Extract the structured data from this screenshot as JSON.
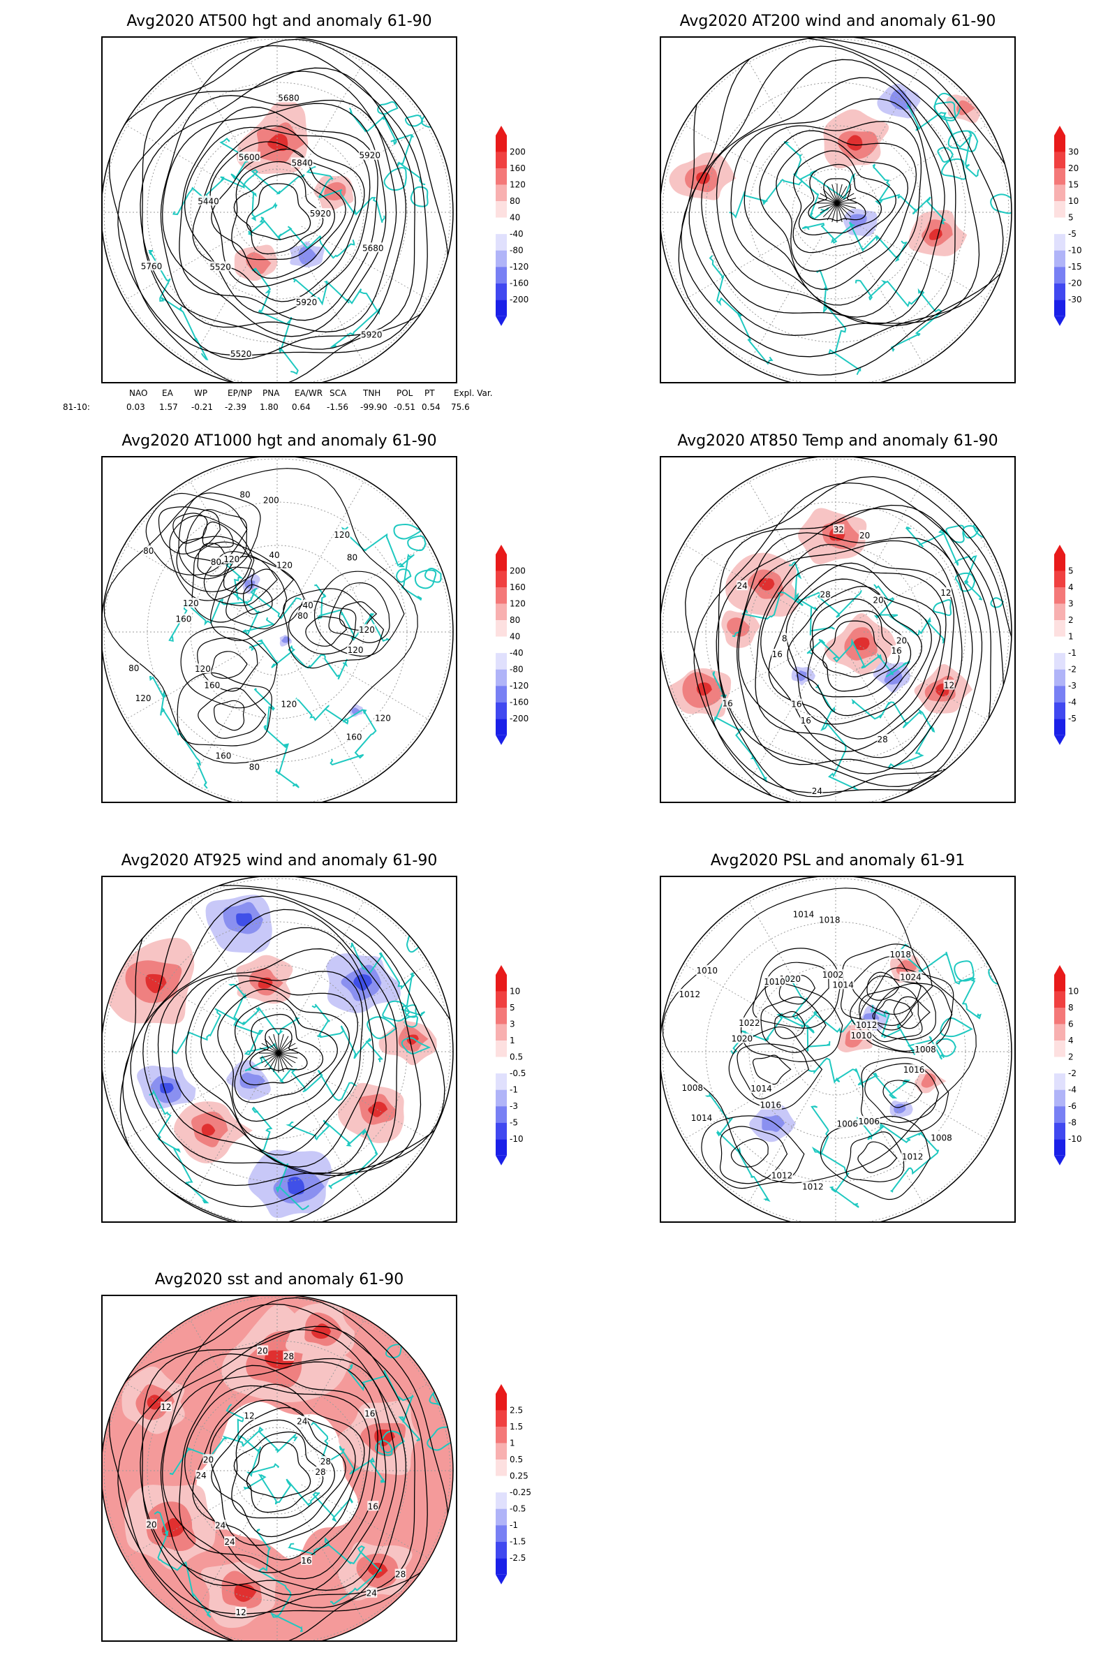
{
  "panels": [
    {
      "title": "Avg2020 AT500 hgt and anomaly 61-90",
      "contour_labels": [
        "5920",
        "5520",
        "5680",
        "5920",
        "5440",
        "5920",
        "5520",
        "5600",
        "5680",
        "5760",
        "5840",
        "5920"
      ],
      "colorbar": [
        "200",
        "160",
        "120",
        "80",
        "40",
        "-40",
        "-80",
        "-120",
        "-160",
        "-200"
      ]
    },
    {
      "title": "Avg2020 AT200 wind and anomaly 61-90",
      "contour_labels": [],
      "colorbar": [
        "30",
        "20",
        "15",
        "10",
        "5",
        "-5",
        "-10",
        "-15",
        "-20",
        "-30"
      ]
    },
    {
      "title": "Avg2020 AT1000 hgt and anomaly 61-90",
      "contour_labels": [
        "80",
        "120",
        "200",
        "160",
        "120",
        "80",
        "160",
        "120",
        "120",
        "80",
        "120",
        "120",
        "80",
        "40",
        "160",
        "80",
        "120",
        "160",
        "120",
        "80",
        "80",
        "120",
        "120",
        "40"
      ],
      "colorbar": [
        "200",
        "160",
        "120",
        "80",
        "40",
        "-40",
        "-80",
        "-120",
        "-160",
        "-200"
      ]
    },
    {
      "title": "Avg2020 AT850 Temp and anomaly 61-90",
      "contour_labels": [
        "16",
        "16",
        "20",
        "28",
        "8",
        "12",
        "24",
        "28",
        "12",
        "16",
        "20",
        "28",
        "24",
        "20",
        "16",
        "32",
        "20",
        "16"
      ],
      "colorbar": [
        "5",
        "4",
        "3",
        "2",
        "1",
        "-1",
        "-2",
        "-3",
        "-4",
        "-5"
      ]
    },
    {
      "title": "Avg2020 AT925 wind and anomaly 61-90",
      "contour_labels": [],
      "colorbar": [
        "10",
        "5",
        "3",
        "1",
        "0.5",
        "-0.5",
        "-1",
        "-3",
        "-5",
        "-10"
      ]
    },
    {
      "title": "Avg2020 PSL and anomaly 61-91",
      "contour_labels": [
        "1010",
        "1014",
        "1018",
        "1012",
        "1022",
        "1024",
        "1012",
        "1020",
        "1016",
        "1008",
        "1014",
        "1006",
        "1010",
        "1012",
        "1016",
        "1014",
        "1008",
        "1020",
        "1018",
        "1012",
        "1010",
        "1008",
        "1014",
        "1002",
        "1006",
        "1012"
      ],
      "colorbar": [
        "10",
        "8",
        "6",
        "4",
        "2",
        "-2",
        "-4",
        "-6",
        "-8",
        "-10"
      ]
    },
    {
      "title": "Avg2020 sst and anomaly 61-90",
      "contour_labels": [
        "28",
        "24",
        "28",
        "24",
        "20",
        "16",
        "12",
        "12",
        "16",
        "20",
        "24",
        "16",
        "12",
        "28",
        "24",
        "20",
        "28",
        "24"
      ],
      "colorbar": [
        "2.5",
        "1.5",
        "1",
        "0.5",
        "0.25",
        "-0.25",
        "-0.5",
        "-1",
        "-1.5",
        "-2.5"
      ]
    }
  ],
  "indices": {
    "headers": [
      "NAO",
      "EA",
      "WP",
      "EP/NP",
      "PNA",
      "EA/WR",
      "SCA",
      "TNH",
      "POL",
      "PT",
      "Expl. Var."
    ],
    "row_label": "81-10:",
    "values": [
      "0.03",
      "1.57",
      "-0.21",
      "-2.39",
      "1.80",
      "0.64",
      "-1.56",
      "-99.90",
      "-0.51",
      "0.54",
      "75.6"
    ]
  },
  "colors": {
    "coast": "#1ec8c0",
    "contour": "#000000",
    "red": "#ef2020",
    "blue": "#2030ef"
  }
}
